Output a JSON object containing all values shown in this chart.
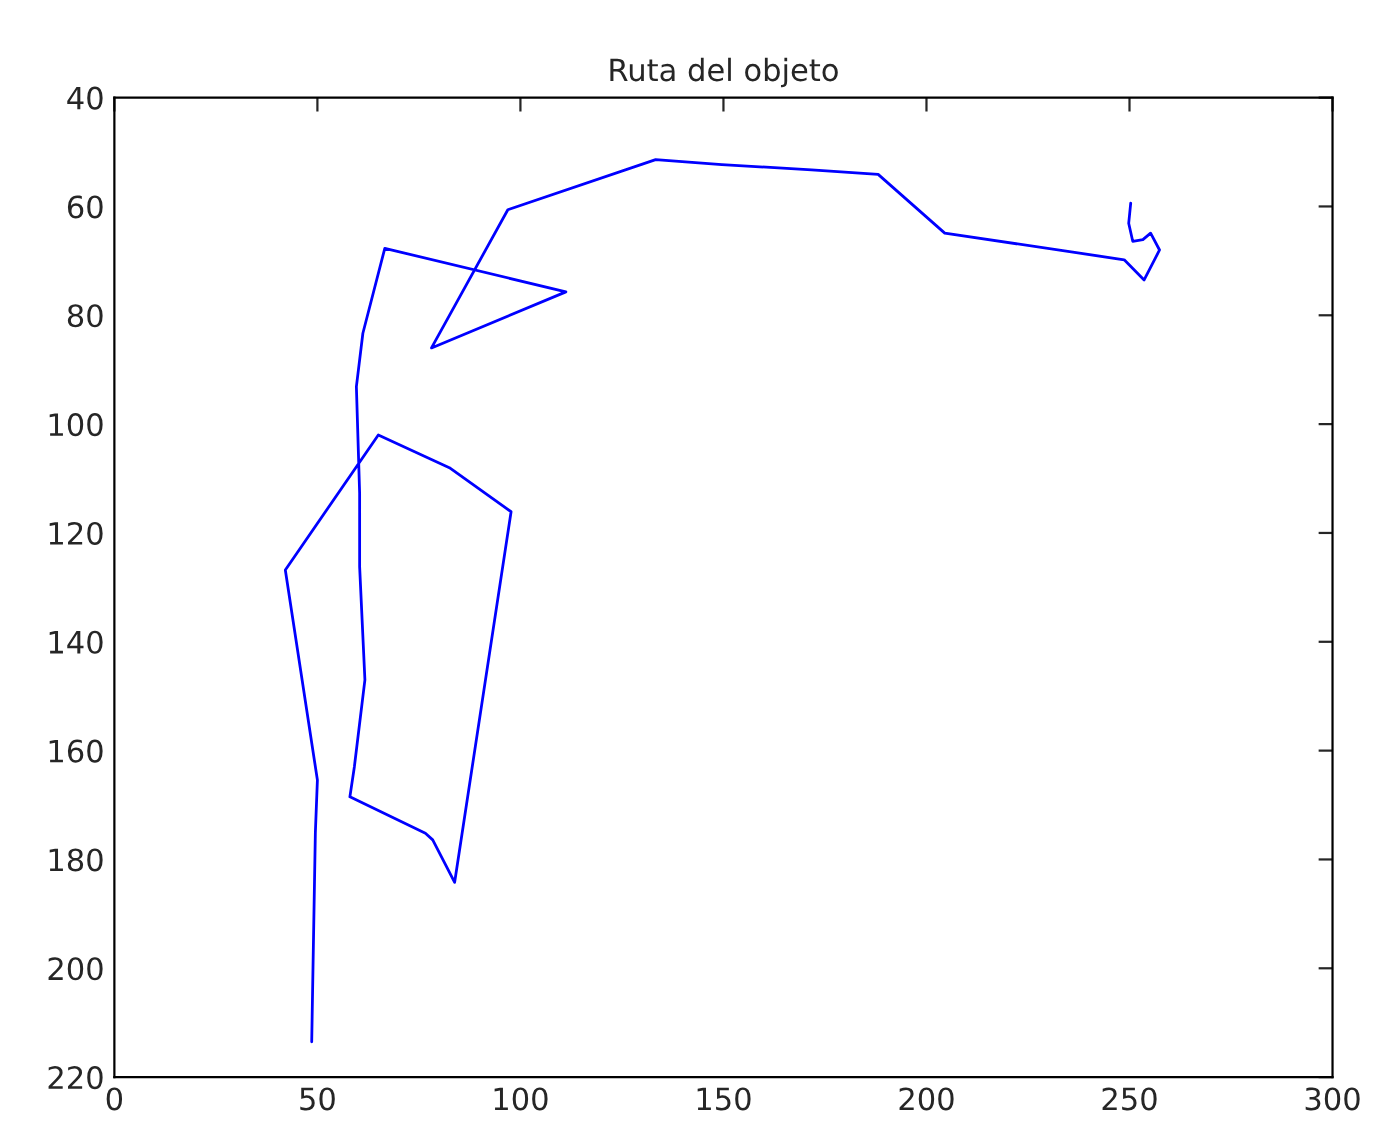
{
  "chart_data": {
    "type": "line",
    "title": "Ruta del objeto",
    "x": [
      48.6,
      49.5,
      50,
      42.1,
      65,
      82.5,
      97.7,
      83.8,
      78.4,
      76.6,
      58,
      59.1,
      61.7,
      60.4,
      60.4,
      59.6,
      61.2,
      66.6,
      111.2,
      78.1,
      96.9,
      133.3,
      149.6,
      171.7,
      188.1,
      204.5,
      248.7,
      253.6,
      257.4,
      255.2,
      253.3,
      250.8,
      249.8,
      250.3
    ],
    "series": [
      {
        "color": "#0000ff",
        "values": [
          213.5,
          175,
          165.4,
          126.8,
          102,
          108,
          116.1,
          184.2,
          176.4,
          175.2,
          168.5,
          163,
          147,
          126.2,
          112.7,
          93.1,
          83.3,
          67.7,
          75.7,
          86,
          60.6,
          51.4,
          52.3,
          53.3,
          54.1,
          64.9,
          69.8,
          73.5,
          68,
          64.9,
          66.1,
          66.4,
          63.1,
          59.4
        ]
      }
    ],
    "xlim": [
      0,
      300
    ],
    "xticks": [
      0,
      50,
      100,
      150,
      200,
      250,
      300
    ],
    "ylim": [
      220,
      40
    ],
    "yticks": [
      40,
      60,
      80,
      100,
      120,
      140,
      160,
      180,
      200,
      220
    ],
    "grid": false,
    "marker": "none",
    "line_style": "solid"
  }
}
